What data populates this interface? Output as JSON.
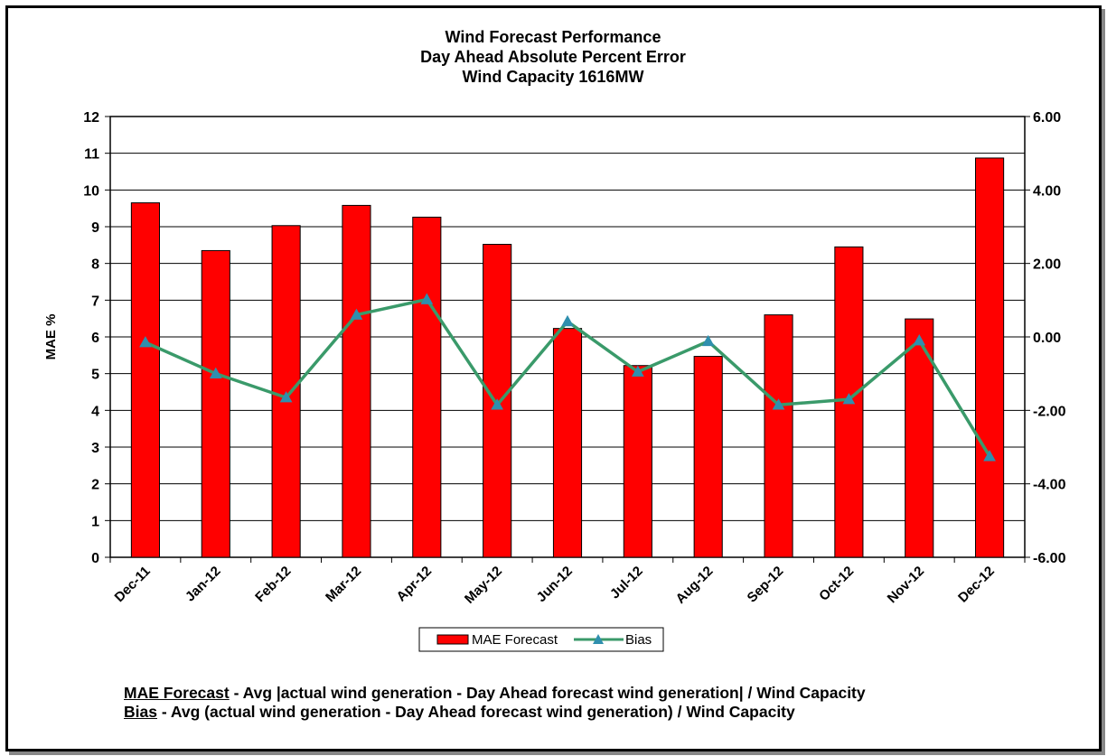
{
  "chart_data": {
    "type": "bar+line",
    "title_lines": [
      "Wind Forecast Performance",
      "Day Ahead Absolute Percent Error",
      "Wind Capacity 1616MW"
    ],
    "ylabel": "MAE %",
    "categories": [
      "Dec-11",
      "Jan-12",
      "Feb-12",
      "Mar-12",
      "Apr-12",
      "May-12",
      "Jun-12",
      "Jul-12",
      "Aug-12",
      "Sep-12",
      "Oct-12",
      "Nov-12",
      "Dec-12"
    ],
    "series": [
      {
        "name": "MAE Forecast",
        "type": "bar",
        "axis": "left",
        "color": "#ff0000",
        "values": [
          9.65,
          8.35,
          9.03,
          9.58,
          9.26,
          8.52,
          6.23,
          5.22,
          5.47,
          6.6,
          8.45,
          6.49,
          10.87
        ]
      },
      {
        "name": "Bias",
        "type": "line",
        "axis": "right",
        "color": "#3a9a6a",
        "marker": "triangle",
        "values": [
          -0.15,
          -1.0,
          -1.65,
          0.6,
          1.02,
          -1.85,
          0.42,
          -0.95,
          -0.12,
          -1.85,
          -1.7,
          -0.1,
          -3.25
        ]
      }
    ],
    "left_axis": {
      "ylim": [
        0,
        12
      ],
      "ticks": [
        "0",
        "1",
        "2",
        "3",
        "4",
        "5",
        "6",
        "7",
        "8",
        "9",
        "10",
        "11",
        "12"
      ]
    },
    "right_axis": {
      "ylim": [
        -6,
        6
      ],
      "ticks": [
        "-6.00",
        "-4.00",
        "-2.00",
        "0.00",
        "2.00",
        "4.00",
        "6.00"
      ]
    },
    "grid": true,
    "legend_position": "bottom-center"
  },
  "definitions": {
    "mae_term": "MAE Forecast",
    "mae_text": " - Avg |actual wind generation - Day Ahead forecast wind generation| / Wind Capacity",
    "bias_term": "Bias",
    "bias_text": " - Avg (actual wind generation - Day Ahead forecast wind generation) / Wind Capacity"
  }
}
